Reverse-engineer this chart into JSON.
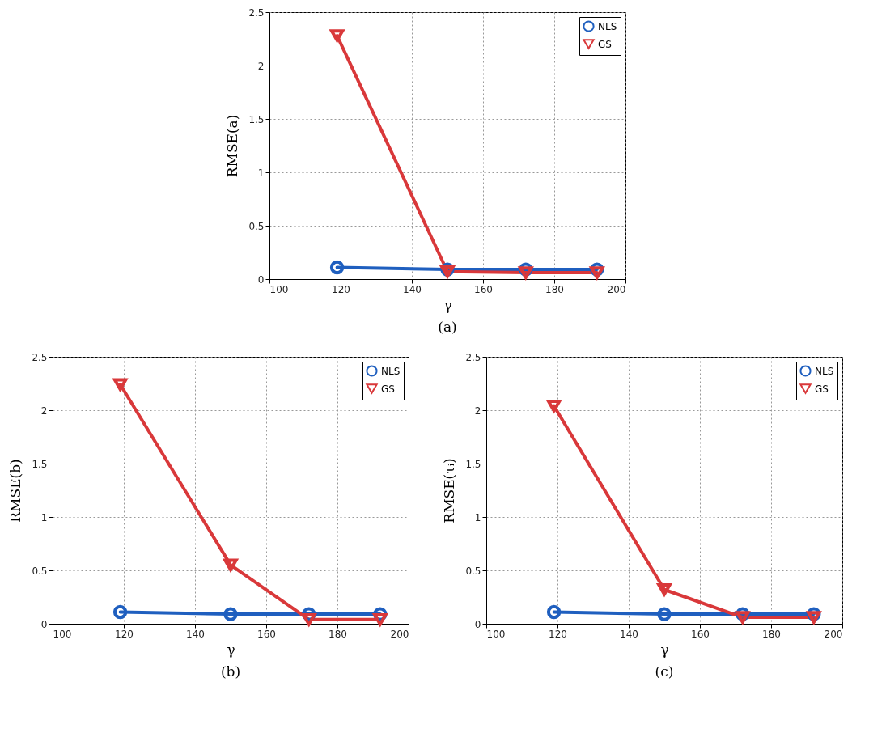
{
  "chart_data": [
    {
      "type": "line",
      "title": "(a)",
      "xlabel": "γ",
      "ylabel": "RMSE(a)",
      "x": [
        119,
        150,
        172,
        192
      ],
      "xlim": [
        100,
        200
      ],
      "xticks": [
        100,
        120,
        140,
        160,
        180,
        200
      ],
      "ylim": [
        0,
        2.5
      ],
      "yticks": [
        0,
        0.5,
        1,
        1.5,
        2,
        2.5
      ],
      "grid": true,
      "legend": "top right",
      "line_style": "solid",
      "series": [
        {
          "name": "NLS",
          "color": "#1f5fbf",
          "marker": "circle",
          "values": [
            0.11,
            0.09,
            0.09,
            0.09
          ]
        },
        {
          "name": "GS",
          "color": "#d9383a",
          "marker": "triangle",
          "values": [
            2.28,
            0.07,
            0.06,
            0.06
          ]
        }
      ]
    },
    {
      "type": "line",
      "title": "(b)",
      "xlabel": "γ",
      "ylabel": "RMSE(b)",
      "x": [
        119,
        150,
        172,
        192
      ],
      "xlim": [
        100,
        200
      ],
      "xticks": [
        100,
        120,
        140,
        160,
        180,
        200
      ],
      "ylim": [
        0,
        2.5
      ],
      "yticks": [
        0,
        0.5,
        1,
        1.5,
        2,
        2.5
      ],
      "grid": true,
      "legend": "top right",
      "line_style": "solid",
      "series": [
        {
          "name": "NLS",
          "color": "#1f5fbf",
          "marker": "circle",
          "values": [
            0.11,
            0.09,
            0.09,
            0.09
          ]
        },
        {
          "name": "GS",
          "color": "#d9383a",
          "marker": "triangle",
          "values": [
            2.24,
            0.55,
            0.04,
            0.04
          ]
        }
      ]
    },
    {
      "type": "line",
      "title": "(c)",
      "xlabel": "γ",
      "ylabel": "RMSE(τᵢ)",
      "x": [
        119,
        150,
        172,
        192
      ],
      "xlim": [
        100,
        200
      ],
      "xticks": [
        100,
        120,
        140,
        160,
        180,
        200
      ],
      "ylim": [
        0,
        2.5
      ],
      "yticks": [
        0,
        0.5,
        1,
        1.5,
        2,
        2.5
      ],
      "grid": true,
      "legend": "top right",
      "line_style": "solid",
      "series": [
        {
          "name": "NLS",
          "color": "#1f5fbf",
          "marker": "circle",
          "values": [
            0.11,
            0.09,
            0.09,
            0.09
          ]
        },
        {
          "name": "GS",
          "color": "#d9383a",
          "marker": "triangle",
          "values": [
            2.04,
            0.32,
            0.06,
            0.06
          ]
        }
      ]
    }
  ]
}
